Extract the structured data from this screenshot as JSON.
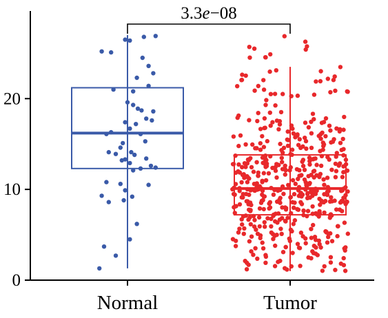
{
  "chart_data": {
    "type": "box",
    "ylim": [
      0,
      27
    ],
    "y_ticks": [
      0,
      10,
      20
    ],
    "y_tick_labels": [
      "0",
      "10",
      "20"
    ],
    "categories": [
      "Normal",
      "Tumor"
    ],
    "groups": [
      {
        "category": "Normal",
        "color": "#3a5aa8",
        "box": {
          "min": 1.3,
          "q1": 12.3,
          "median": 16.2,
          "q3": 21.2,
          "max": 27.0
        },
        "points": [
          [
            -0.55,
            25.2
          ],
          [
            -0.35,
            25.1
          ],
          [
            -0.05,
            26.5
          ],
          [
            0.05,
            26.4
          ],
          [
            0.6,
            26.9
          ],
          [
            0.35,
            26.8
          ],
          [
            0.32,
            24.5
          ],
          [
            0.45,
            23.6
          ],
          [
            0.55,
            22.8
          ],
          [
            0.2,
            22.3
          ],
          [
            0.45,
            21.4
          ],
          [
            0.12,
            20.8
          ],
          [
            -0.3,
            21.0
          ],
          [
            0.0,
            19.6
          ],
          [
            0.12,
            19.3
          ],
          [
            0.22,
            18.9
          ],
          [
            0.3,
            18.7
          ],
          [
            0.55,
            18.6
          ],
          [
            0.4,
            17.8
          ],
          [
            0.52,
            17.6
          ],
          [
            -0.05,
            17.4
          ],
          [
            0.18,
            17.2
          ],
          [
            0.05,
            16.7
          ],
          [
            -0.35,
            16.3
          ],
          [
            -0.45,
            16.1
          ],
          [
            0.28,
            16.1
          ],
          [
            0.38,
            15.3
          ],
          [
            -0.1,
            15.1
          ],
          [
            -0.15,
            14.6
          ],
          [
            0.08,
            14.1
          ],
          [
            -0.4,
            14.1
          ],
          [
            -0.25,
            13.9
          ],
          [
            0.15,
            13.8
          ],
          [
            0.4,
            13.4
          ],
          [
            -0.05,
            13.3
          ],
          [
            -0.12,
            13.2
          ],
          [
            0.05,
            12.9
          ],
          [
            0.5,
            12.6
          ],
          [
            0.6,
            12.4
          ],
          [
            0.28,
            12.3
          ],
          [
            0.12,
            12.1
          ],
          [
            -0.45,
            10.8
          ],
          [
            -0.15,
            10.6
          ],
          [
            0.45,
            10.5
          ],
          [
            -0.05,
            9.9
          ],
          [
            -0.55,
            9.3
          ],
          [
            0.1,
            9.2
          ],
          [
            -0.4,
            8.6
          ],
          [
            -0.08,
            8.8
          ],
          [
            0.2,
            6.2
          ],
          [
            0.05,
            4.5
          ],
          [
            -0.5,
            3.7
          ],
          [
            -0.25,
            2.7
          ],
          [
            -0.6,
            1.3
          ]
        ]
      },
      {
        "category": "Tumor",
        "color": "#e8282b",
        "box": {
          "min": 1.0,
          "q1": 7.2,
          "median": 10.1,
          "q3": 13.8,
          "max": 23.5
        },
        "n_points": 520,
        "seed": 20240
      }
    ],
    "comparison": {
      "label": "3.3e−08",
      "label_parts": [
        "3.3",
        "e",
        "−08"
      ],
      "from": "Normal",
      "to": "Tumor"
    }
  }
}
